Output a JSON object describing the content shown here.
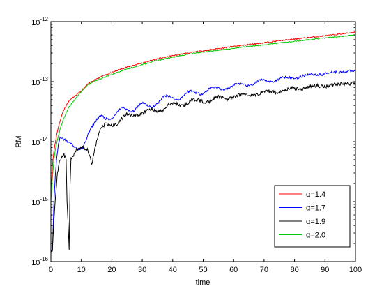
{
  "chart_data": {
    "type": "line",
    "xlabel": "time",
    "ylabel": "RM",
    "xlim": [
      0,
      100
    ],
    "ylim": [
      1e-16,
      1e-12
    ],
    "yscale": "log",
    "x_ticks": [
      0,
      10,
      20,
      30,
      40,
      50,
      60,
      70,
      80,
      90,
      100
    ],
    "y_ticks": [
      {
        "value": 1e-16,
        "base": "10",
        "exp": "-16"
      },
      {
        "value": 1e-15,
        "base": "10",
        "exp": "-15"
      },
      {
        "value": 1e-14,
        "base": "10",
        "exp": "-14"
      },
      {
        "value": 1e-13,
        "base": "10",
        "exp": "-13"
      },
      {
        "value": 1e-12,
        "base": "10",
        "exp": "-12"
      }
    ],
    "grid": false,
    "legend_position": "bottom-right",
    "series": [
      {
        "name": "α=1.4",
        "color": "#ff0000",
        "x": [
          0,
          0.5,
          1,
          1.5,
          2,
          3,
          4,
          5,
          6,
          8,
          10,
          12,
          15,
          20,
          25,
          30,
          35,
          40,
          45,
          50,
          55,
          60,
          65,
          70,
          75,
          80,
          85,
          90,
          95,
          100
        ],
        "y": [
          1.5e-15,
          4e-15,
          7e-15,
          1e-14,
          1.4e-14,
          2.2e-14,
          3.2e-14,
          4e-14,
          4.8e-14,
          5.8e-14,
          7e-14,
          9e-14,
          1.12e-13,
          1.42e-13,
          1.75e-13,
          2.05e-13,
          2.4e-13,
          2.7e-13,
          3e-13,
          3.25e-13,
          3.55e-13,
          3.85e-13,
          4.15e-13,
          4.45e-13,
          4.8e-13,
          5.1e-13,
          5.45e-13,
          5.8e-13,
          6.2e-13,
          6.7e-13
        ]
      },
      {
        "name": "α=1.7",
        "color": "#0000ff",
        "x": [
          0,
          0.5,
          1,
          1.5,
          2,
          2.5,
          3,
          4,
          5,
          6,
          7,
          8,
          9,
          10,
          11,
          12,
          13,
          14,
          15,
          16,
          17,
          18,
          19,
          20,
          21,
          22,
          23,
          24,
          25,
          26,
          27,
          28,
          29,
          30,
          31,
          32,
          33,
          34,
          35,
          36,
          37,
          38,
          39,
          40,
          41,
          42,
          43,
          44,
          45,
          46,
          47,
          48,
          49,
          50,
          51,
          52,
          53,
          54,
          55,
          56,
          57,
          58,
          59,
          60,
          61,
          62,
          63,
          64,
          65,
          66,
          67,
          68,
          69,
          70,
          71,
          72,
          73,
          74,
          75,
          76,
          77,
          78,
          79,
          80,
          81,
          82,
          83,
          84,
          85,
          86,
          87,
          88,
          89,
          90,
          91,
          92,
          93,
          94,
          95,
          96,
          97,
          98,
          99,
          100
        ],
        "y": [
          1.5e-16,
          1.5e-16,
          1e-15,
          3e-15,
          6e-15,
          9e-15,
          1.15e-14,
          1.1e-14,
          1.05e-14,
          9.5e-15,
          9e-15,
          8e-15,
          7.5e-15,
          7.5e-15,
          9e-15,
          1.25e-14,
          1.6e-14,
          1.95e-14,
          2.3e-14,
          2.7e-14,
          2.65e-14,
          2.4e-14,
          2.3e-14,
          2.4e-14,
          2.7e-14,
          3.2e-14,
          3.6e-14,
          3.7e-14,
          3.4e-14,
          3.15e-14,
          3.2e-14,
          3.55e-14,
          4.1e-14,
          4.5e-14,
          4.3e-14,
          3.9e-14,
          3.75e-14,
          3.85e-14,
          4.3e-14,
          5e-14,
          5.6e-14,
          5.9e-14,
          5.7e-14,
          5.3e-14,
          5e-14,
          5.05e-14,
          5.5e-14,
          6.2e-14,
          6.8e-14,
          7e-14,
          6.8e-14,
          6.4e-14,
          6.2e-14,
          6.35e-14,
          6.9e-14,
          7.6e-14,
          8e-14,
          8.1e-14,
          7.8e-14,
          7.45e-14,
          7.3e-14,
          7.5e-14,
          8.1e-14,
          8.8e-14,
          9.2e-14,
          9.2e-14,
          8.9e-14,
          8.6e-14,
          8.5e-14,
          8.8e-14,
          9.5e-14,
          1.02e-13,
          1.06e-13,
          1.06e-13,
          1.03e-13,
          1e-13,
          1e-13,
          1.04e-13,
          1.11e-13,
          1.17e-13,
          1.2e-13,
          1.19e-13,
          1.16e-13,
          1.14e-13,
          1.15e-13,
          1.2e-13,
          1.26e-13,
          1.31e-13,
          1.33e-13,
          1.32e-13,
          1.3e-13,
          1.29e-13,
          1.31e-13,
          1.36e-13,
          1.41e-13,
          1.44e-13,
          1.45e-13,
          1.44e-13,
          1.43e-13,
          1.44e-13,
          1.47e-13,
          1.5e-13,
          1.5e-13,
          1.48e-13
        ]
      },
      {
        "name": "α=1.9",
        "color": "#000000",
        "x": [
          0,
          0.5,
          1,
          1.5,
          2,
          2.5,
          3,
          3.5,
          4,
          4.5,
          5,
          5.3,
          5.6,
          6,
          6.3,
          6.6,
          7,
          7.5,
          8,
          8.5,
          9,
          10,
          11,
          12,
          12.5,
          13,
          13.5,
          14,
          15,
          16,
          17,
          18,
          19,
          20,
          21,
          22,
          23,
          24,
          25,
          26,
          27,
          28,
          29,
          30,
          31,
          32,
          33,
          34,
          35,
          36,
          37,
          38,
          39,
          40,
          41,
          42,
          43,
          44,
          45,
          46,
          47,
          48,
          49,
          50,
          51,
          52,
          53,
          54,
          55,
          56,
          57,
          58,
          59,
          60,
          61,
          62,
          63,
          64,
          65,
          66,
          67,
          68,
          69,
          70,
          71,
          72,
          73,
          74,
          75,
          76,
          77,
          78,
          79,
          80,
          81,
          82,
          83,
          84,
          85,
          86,
          87,
          88,
          89,
          90,
          91,
          92,
          93,
          94,
          95,
          96,
          97,
          98,
          99,
          100
        ],
        "y": [
          1.5e-16,
          1.5e-16,
          5e-16,
          1.2e-15,
          2.5e-15,
          4e-15,
          5e-15,
          5.5e-15,
          6e-15,
          5.8e-15,
          5e-15,
          1e-15,
          5e-16,
          1.5e-16,
          2e-15,
          5e-15,
          5.5e-15,
          6e-15,
          7e-15,
          7.5e-15,
          7.8e-15,
          8.2e-15,
          7.8e-15,
          7.5e-15,
          6.5e-15,
          5.5e-15,
          4e-15,
          6e-15,
          1e-14,
          1.5e-14,
          1.8e-14,
          1.95e-14,
          1.9e-14,
          1.85e-14,
          1.9e-14,
          2e-14,
          2.3e-14,
          2.7e-14,
          2.9e-14,
          2.85e-14,
          2.75e-14,
          2.7e-14,
          2.75e-14,
          2.9e-14,
          3.2e-14,
          3.4e-14,
          3.45e-14,
          3.3e-14,
          3.2e-14,
          3.2e-14,
          3.4e-14,
          3.8e-14,
          4.2e-14,
          4.4e-14,
          4.3e-14,
          4.1e-14,
          4e-14,
          4.1e-14,
          4.4e-14,
          4.8e-14,
          5e-14,
          5e-14,
          4.8e-14,
          4.6e-14,
          4.55e-14,
          4.7e-14,
          5.1e-14,
          5.4e-14,
          5.55e-14,
          5.5e-14,
          5.35e-14,
          5.2e-14,
          5.2e-14,
          5.4e-14,
          5.8e-14,
          6.1e-14,
          6.2e-14,
          6.1e-14,
          5.95e-14,
          5.85e-14,
          5.9e-14,
          6.2e-14,
          6.6e-14,
          6.9e-14,
          7e-14,
          6.9e-14,
          6.75e-14,
          6.65e-14,
          6.7e-14,
          7e-14,
          7.4e-14,
          7.7e-14,
          7.8e-14,
          7.7e-14,
          7.6e-14,
          7.55e-14,
          7.65e-14,
          7.95e-14,
          8.3e-14,
          8.55e-14,
          8.6e-14,
          8.5e-14,
          8.4e-14,
          8.4e-14,
          8.55e-14,
          8.85e-14,
          9.1e-14,
          9.3e-14,
          9.3e-14,
          9.2e-14,
          9.15e-14,
          9.2e-14,
          9.4e-14,
          9.6e-14
        ]
      },
      {
        "name": "α=2.0",
        "color": "#00cc00",
        "x": [
          0,
          0.5,
          1,
          1.5,
          2,
          3,
          4,
          5,
          6,
          8,
          10,
          12,
          15,
          20,
          25,
          30,
          35,
          40,
          45,
          50,
          55,
          60,
          65,
          70,
          75,
          80,
          85,
          90,
          95,
          100
        ],
        "y": [
          1e-15,
          2.5e-15,
          5e-15,
          7.5e-15,
          1e-14,
          1.6e-14,
          2.3e-14,
          3e-14,
          3.8e-14,
          5.2e-14,
          6.8e-14,
          8.8e-14,
          1.05e-13,
          1.32e-13,
          1.62e-13,
          1.92e-13,
          2.25e-13,
          2.55e-13,
          2.85e-13,
          3.1e-13,
          3.35e-13,
          3.6e-13,
          3.85e-13,
          4.1e-13,
          4.4e-13,
          4.7e-13,
          5e-13,
          5.35e-13,
          5.65e-13,
          6e-13
        ]
      }
    ]
  }
}
